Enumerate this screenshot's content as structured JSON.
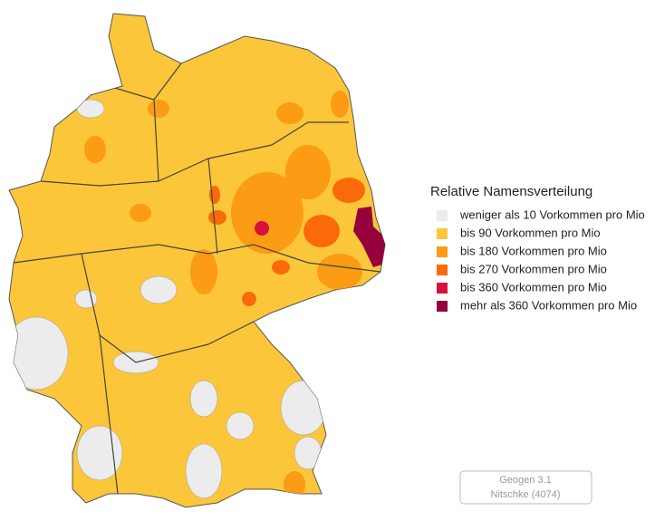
{
  "legend": {
    "title": "Relative Namensverteilung",
    "items": [
      {
        "label": "weniger als 10 Vorkommen pro Mio",
        "color": "#ececec"
      },
      {
        "label": "bis 90 Vorkommen pro Mio",
        "color": "#fcc63a"
      },
      {
        "label": "bis 180 Vorkommen pro Mio",
        "color": "#fb9c14"
      },
      {
        "label": "bis 270 Vorkommen pro Mio",
        "color": "#fa6a0a"
      },
      {
        "label": "bis 360 Vorkommen pro Mio",
        "color": "#d8103c"
      },
      {
        "label": "mehr als 360 Vorkommen pro Mio",
        "color": "#96003c"
      }
    ]
  },
  "footer": {
    "line1": "Geogen 3.1",
    "line2": "Nitschke (4074)"
  }
}
